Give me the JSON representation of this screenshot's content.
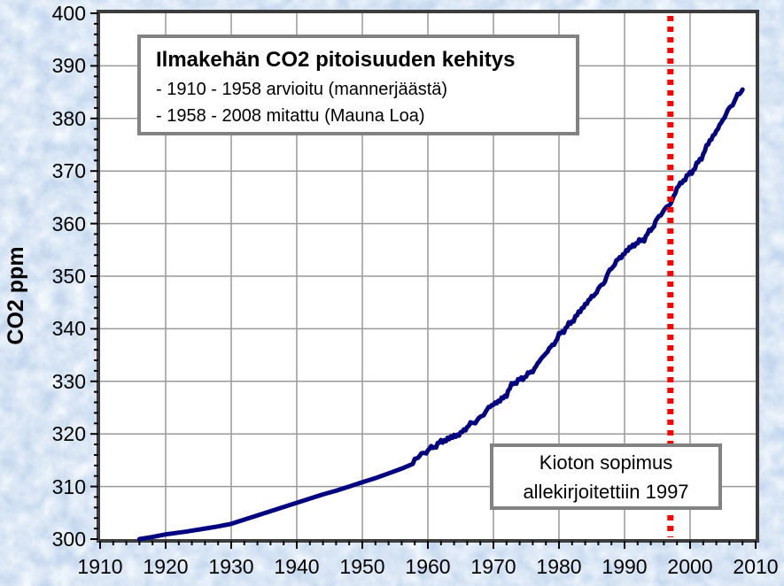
{
  "colors": {
    "background": "#cadcf0",
    "plot_fill": "#ffffff",
    "plot_border": "#3d3d3d",
    "grid": "#9a9a9a",
    "tick": "#000000",
    "series": "#000080",
    "vline": "#ff0000",
    "box_border": "#828282",
    "text": "#000000"
  },
  "chart_data": {
    "type": "line",
    "title": "Ilmakehän CO2 pitoisuuden kehitys",
    "subtitle_lines": [
      "- 1910 - 1958 arvioitu (mannerjäästä)",
      "- 1958 - 2008 mitattu (Mauna Loa)"
    ],
    "ylabel": "CO2 ppm",
    "xlabel": "",
    "xlim": [
      1910,
      2010
    ],
    "ylim": [
      300,
      400
    ],
    "x_major_ticks": [
      1910,
      1920,
      1930,
      1940,
      1950,
      1960,
      1970,
      1980,
      1990,
      2000,
      2010
    ],
    "y_major_ticks": [
      300,
      310,
      320,
      330,
      340,
      350,
      360,
      370,
      380,
      390,
      400
    ],
    "x_minor_step": 2,
    "y_minor_step": 2,
    "grid": true,
    "legend": "none",
    "noisy_from_year": 1958,
    "series": [
      {
        "name": "CO2 ppm",
        "points": [
          [
            1916,
            300.0
          ],
          [
            1918,
            300.4
          ],
          [
            1920,
            300.9
          ],
          [
            1923,
            301.4
          ],
          [
            1926,
            302.0
          ],
          [
            1928,
            302.4
          ],
          [
            1930,
            302.9
          ],
          [
            1932,
            303.7
          ],
          [
            1934,
            304.5
          ],
          [
            1936,
            305.3
          ],
          [
            1938,
            306.1
          ],
          [
            1940,
            306.9
          ],
          [
            1942,
            307.7
          ],
          [
            1944,
            308.5
          ],
          [
            1946,
            309.2
          ],
          [
            1948,
            310.0
          ],
          [
            1950,
            310.8
          ],
          [
            1952,
            311.6
          ],
          [
            1954,
            312.5
          ],
          [
            1956,
            313.4
          ],
          [
            1957.7,
            314.3
          ],
          [
            1958,
            315.3
          ],
          [
            1959,
            316.0
          ],
          [
            1960,
            316.9
          ],
          [
            1961,
            317.6
          ],
          [
            1962,
            318.5
          ],
          [
            1963,
            319.0
          ],
          [
            1964,
            319.6
          ],
          [
            1965,
            320.0
          ],
          [
            1966,
            321.4
          ],
          [
            1967,
            322.2
          ],
          [
            1968,
            323.0
          ],
          [
            1969,
            324.6
          ],
          [
            1970,
            325.7
          ],
          [
            1971,
            326.3
          ],
          [
            1972,
            327.5
          ],
          [
            1973,
            329.7
          ],
          [
            1974,
            330.2
          ],
          [
            1975,
            331.1
          ],
          [
            1976,
            332.0
          ],
          [
            1977,
            333.8
          ],
          [
            1978,
            335.4
          ],
          [
            1979,
            336.8
          ],
          [
            1980,
            338.7
          ],
          [
            1981,
            340.1
          ],
          [
            1982,
            341.4
          ],
          [
            1983,
            343.0
          ],
          [
            1984,
            344.6
          ],
          [
            1985,
            346.0
          ],
          [
            1986,
            347.4
          ],
          [
            1987,
            349.2
          ],
          [
            1988,
            351.6
          ],
          [
            1989,
            353.1
          ],
          [
            1990,
            354.4
          ],
          [
            1991,
            355.6
          ],
          [
            1992,
            356.4
          ],
          [
            1993,
            357.1
          ],
          [
            1994,
            358.8
          ],
          [
            1995,
            360.8
          ],
          [
            1996,
            362.6
          ],
          [
            1997,
            363.7
          ],
          [
            1998,
            366.7
          ],
          [
            1999,
            368.3
          ],
          [
            2000,
            369.5
          ],
          [
            2001,
            371.1
          ],
          [
            2002,
            373.2
          ],
          [
            2003,
            375.8
          ],
          [
            2004,
            377.5
          ],
          [
            2005,
            379.8
          ],
          [
            2006,
            381.9
          ],
          [
            2007,
            383.8
          ],
          [
            2008,
            385.5
          ]
        ]
      }
    ],
    "vline": {
      "x": 1997,
      "style": "dotted"
    },
    "annotation": {
      "lines": [
        "Kioton sopimus",
        "allekirjoitettiin 1997"
      ]
    }
  }
}
